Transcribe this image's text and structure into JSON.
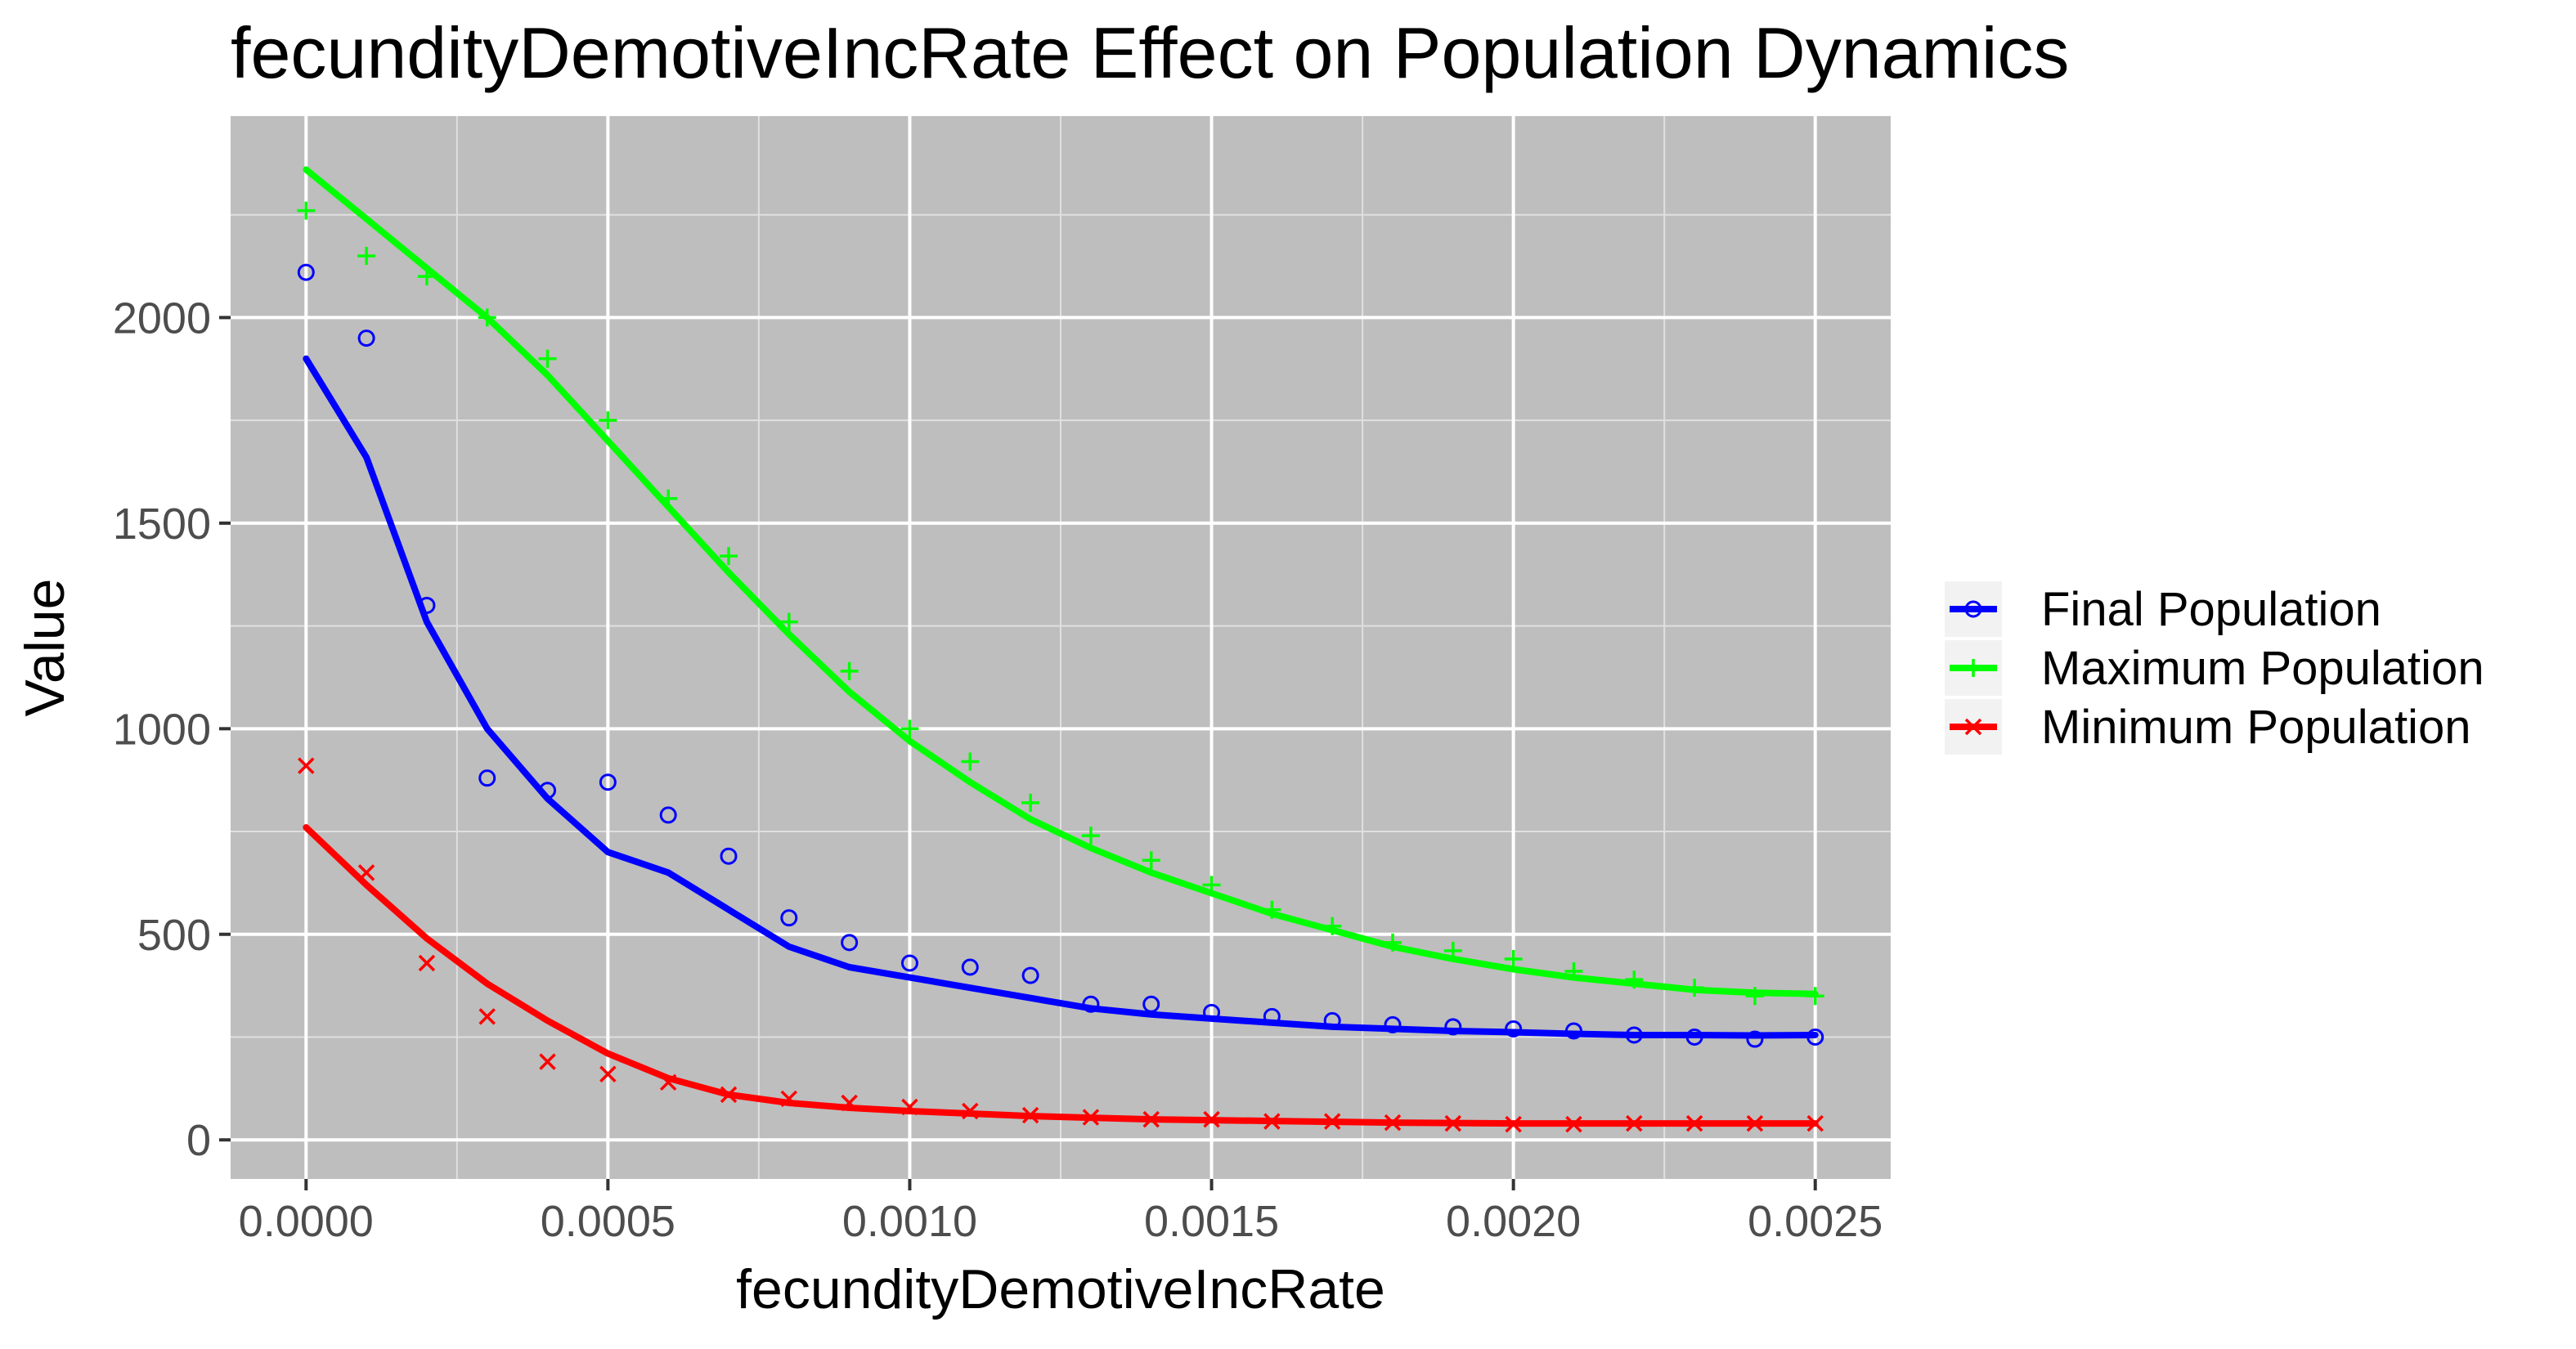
{
  "chart_data": {
    "type": "scatter",
    "title": "fecundityDemotiveIncRate Effect on Population Dynamics",
    "xlabel": "fecundityDemotiveIncRate",
    "ylabel": "Value",
    "xlim": [
      -0.000125,
      0.002625
    ],
    "ylim": [
      -95,
      2490
    ],
    "x_ticks": [
      0,
      0.0005,
      0.001,
      0.0015,
      0.002,
      0.0025
    ],
    "x_tick_labels": [
      "0.0000",
      "0.0005",
      "0.0010",
      "0.0015",
      "0.0020",
      "0.0025"
    ],
    "y_ticks": [
      0,
      500,
      1000,
      1500,
      2000
    ],
    "y_tick_labels": [
      "0",
      "500",
      "1000",
      "1500",
      "2000"
    ],
    "grid": true,
    "legend_position": "right",
    "panel_background": "#bebebe",
    "series": [
      {
        "name": "Final Population",
        "color": "#0000ff",
        "marker": "circle",
        "x": [
          0.0,
          0.0001,
          0.0002,
          0.0003,
          0.0004,
          0.0005,
          0.0006,
          0.0007,
          0.0008,
          0.0009,
          0.001,
          0.0011,
          0.0012,
          0.0013,
          0.0014,
          0.0015,
          0.0016,
          0.0017,
          0.0018,
          0.0019,
          0.002,
          0.0021,
          0.0022,
          0.0023,
          0.0024,
          0.0025
        ],
        "values": [
          2110,
          1950,
          1300,
          880,
          850,
          870,
          790,
          690,
          540,
          480,
          430,
          420,
          400,
          330,
          330,
          310,
          300,
          290,
          280,
          275,
          270,
          265,
          255,
          250,
          245,
          250
        ],
        "trend": [
          1900,
          1660,
          1260,
          1000,
          830,
          700,
          650,
          560,
          470,
          420,
          395,
          370,
          345,
          320,
          305,
          295,
          285,
          275,
          270,
          265,
          262,
          258,
          255,
          255,
          254,
          255
        ]
      },
      {
        "name": "Maximum Population",
        "color": "#00ff00",
        "marker": "plus",
        "x": [
          0.0,
          0.0001,
          0.0002,
          0.0003,
          0.0004,
          0.0005,
          0.0006,
          0.0007,
          0.0008,
          0.0009,
          0.001,
          0.0011,
          0.0012,
          0.0013,
          0.0014,
          0.0015,
          0.0016,
          0.0017,
          0.0018,
          0.0019,
          0.002,
          0.0021,
          0.0022,
          0.0023,
          0.0024,
          0.0025
        ],
        "values": [
          2260,
          2150,
          2100,
          2000,
          1900,
          1750,
          1560,
          1420,
          1260,
          1140,
          1000,
          920,
          820,
          740,
          680,
          620,
          560,
          520,
          480,
          460,
          440,
          410,
          390,
          370,
          350,
          350
        ],
        "trend": [
          2360,
          2240,
          2120,
          2000,
          1860,
          1700,
          1540,
          1380,
          1230,
          1090,
          970,
          870,
          780,
          710,
          650,
          600,
          550,
          510,
          470,
          440,
          415,
          395,
          380,
          365,
          358,
          355
        ]
      },
      {
        "name": "Minimum Population",
        "color": "#ff0000",
        "marker": "x",
        "x": [
          0.0,
          0.0001,
          0.0002,
          0.0003,
          0.0004,
          0.0005,
          0.0006,
          0.0007,
          0.0008,
          0.0009,
          0.001,
          0.0011,
          0.0012,
          0.0013,
          0.0014,
          0.0015,
          0.0016,
          0.0017,
          0.0018,
          0.0019,
          0.002,
          0.0021,
          0.0022,
          0.0023,
          0.0024,
          0.0025
        ],
        "values": [
          910,
          650,
          430,
          300,
          190,
          160,
          140,
          110,
          100,
          90,
          80,
          70,
          60,
          55,
          50,
          50,
          45,
          45,
          42,
          40,
          38,
          38,
          40,
          40,
          40,
          40
        ],
        "trend": [
          760,
          620,
          490,
          380,
          290,
          210,
          150,
          110,
          90,
          78,
          70,
          64,
          58,
          54,
          50,
          48,
          46,
          44,
          42,
          41,
          40,
          40,
          40,
          40,
          40,
          40
        ]
      }
    ]
  }
}
